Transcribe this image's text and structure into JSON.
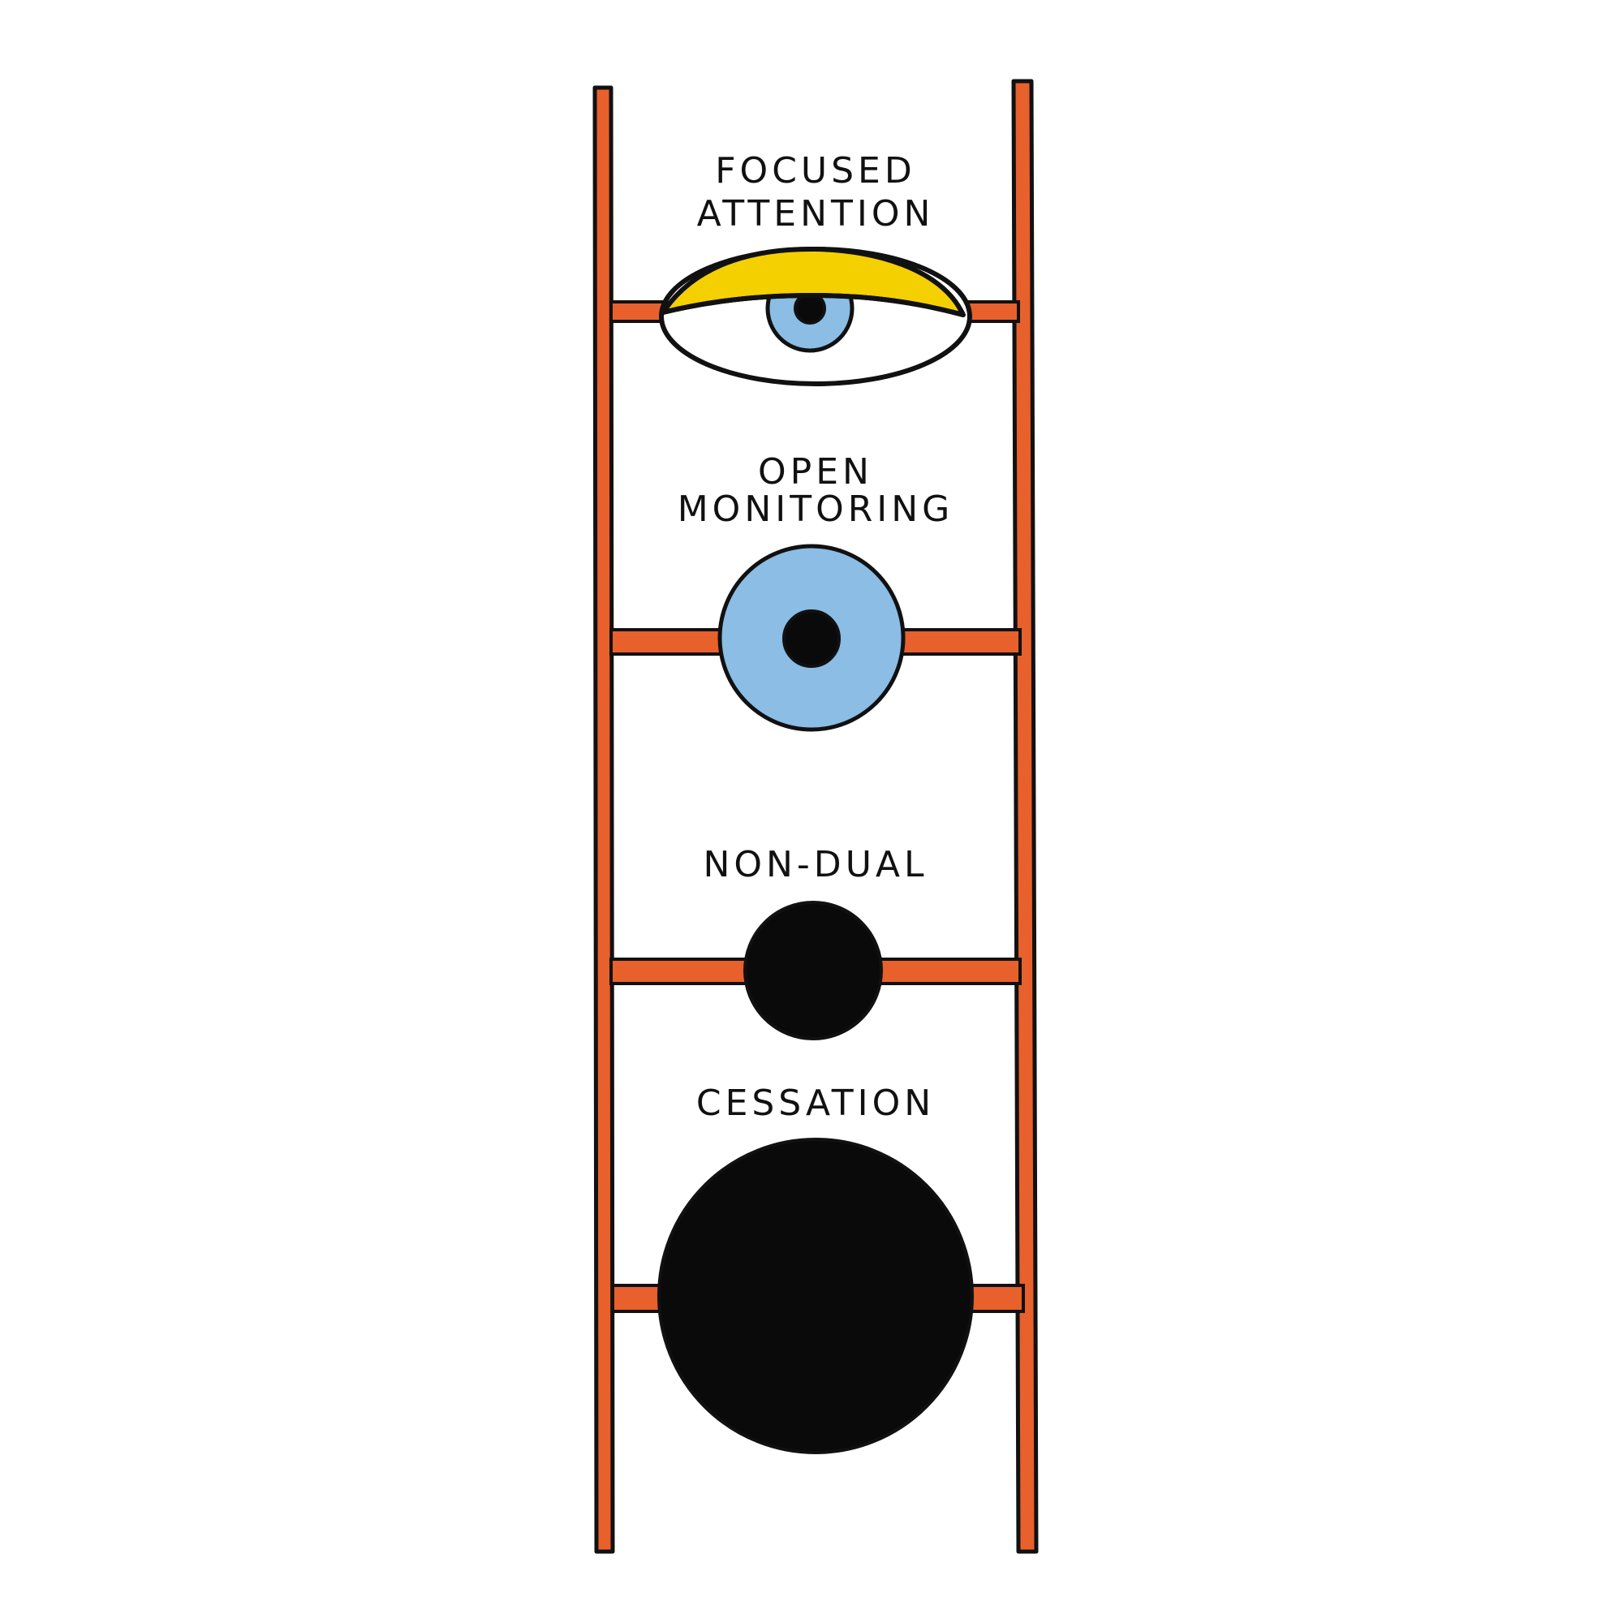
{
  "colors": {
    "ladder": "#E8602C",
    "outline": "#111111",
    "lid": "#F5D000",
    "iris": "#8BBDE5",
    "pupil": "#0A0A0A",
    "sclera": "#FFFFFF",
    "background": "#FFFFFF"
  },
  "stages": [
    {
      "line1": "FOCUSED",
      "line2": "ATTENTION",
      "icon": "half-closed-eye-icon"
    },
    {
      "line1": "OPEN",
      "line2": "MONITORING",
      "icon": "open-iris-icon"
    },
    {
      "line1": "NON-DUAL",
      "line2": "",
      "icon": "small-black-dot-icon"
    },
    {
      "line1": "CESSATION",
      "line2": "",
      "icon": "large-black-circle-icon"
    }
  ]
}
